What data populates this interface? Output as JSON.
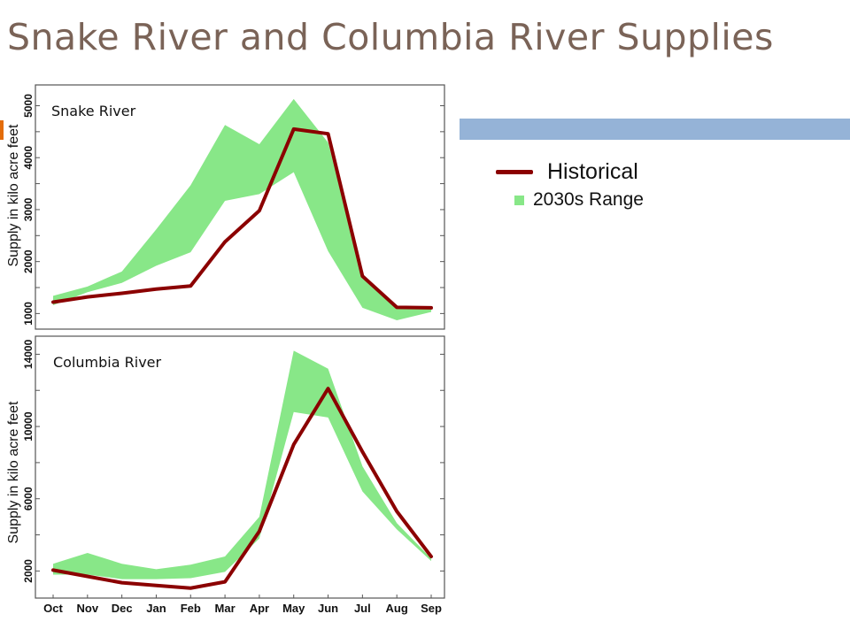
{
  "slide": {
    "title": "Snake River and Columbia River Supplies"
  },
  "legend": {
    "historical": "Historical",
    "range": "2030s Range"
  },
  "colors": {
    "historical": "#8b0000",
    "range": "#88e788",
    "title": "#7a6357",
    "accent": "#e36c0a",
    "band": "#95b3d7"
  },
  "chart_data": [
    {
      "type": "area",
      "title": "Snake River",
      "ylabel": "Supply in kilo acre feet",
      "categories": [
        "Oct",
        "Nov",
        "Dec",
        "Jan",
        "Feb",
        "Mar",
        "Apr",
        "May",
        "Jun",
        "Jul",
        "Aug",
        "Sep"
      ],
      "ylim": [
        700,
        5400
      ],
      "yticks": [
        1000,
        2000,
        3000,
        4000,
        5000
      ],
      "series": [
        {
          "name": "Historical",
          "kind": "line",
          "values": [
            1220,
            1320,
            1390,
            1470,
            1530,
            2380,
            2980,
            4550,
            4460,
            1720,
            1120,
            1110
          ]
        },
        {
          "name": "2030s Range",
          "kind": "band",
          "low": [
            1160,
            1410,
            1590,
            1920,
            2180,
            3170,
            3300,
            3720,
            2200,
            1110,
            870,
            1030
          ],
          "high": [
            1340,
            1520,
            1810,
            2620,
            3470,
            4630,
            4260,
            5130,
            4290,
            1750,
            1140,
            1090
          ]
        }
      ]
    },
    {
      "type": "area",
      "title": "Columbia River",
      "ylabel": "Supply in kilo acre feet",
      "categories": [
        "Oct",
        "Nov",
        "Dec",
        "Jan",
        "Feb",
        "Mar",
        "Apr",
        "May",
        "Jun",
        "Jul",
        "Aug",
        "Sep"
      ],
      "ylim": [
        500,
        15000
      ],
      "yticks": [
        2000,
        6000,
        10000,
        14000
      ],
      "series": [
        {
          "name": "Historical",
          "kind": "line",
          "values": [
            2050,
            1700,
            1350,
            1200,
            1050,
            1400,
            4200,
            9000,
            12100,
            8600,
            5300,
            2800
          ]
        },
        {
          "name": "2030s Range",
          "kind": "band",
          "low": [
            1800,
            1800,
            1550,
            1550,
            1600,
            1950,
            3800,
            10800,
            10500,
            6400,
            4300,
            2550
          ],
          "high": [
            2400,
            3000,
            2400,
            2100,
            2350,
            2800,
            5000,
            14200,
            13200,
            7800,
            4650,
            2700
          ]
        }
      ]
    }
  ]
}
